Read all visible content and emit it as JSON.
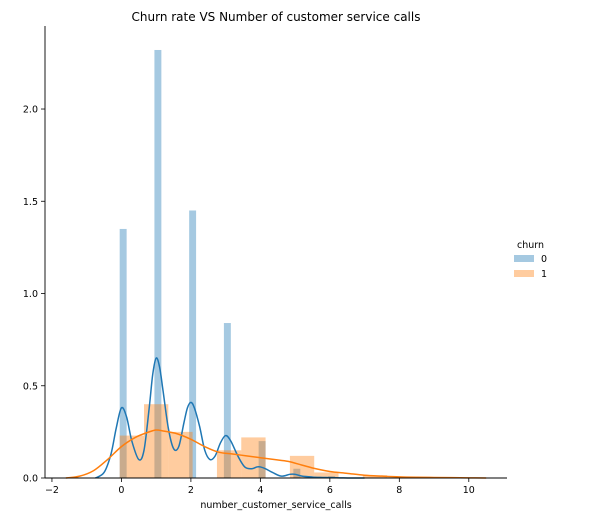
{
  "chart_data": {
    "type": "bar",
    "title": "Churn rate VS Number of customer service calls",
    "xlabel": "number_customer_service_calls",
    "ylabel": "",
    "xlim": [
      -2.2,
      11.1
    ],
    "ylim": [
      0,
      2.45
    ],
    "xticks": [
      -2,
      0,
      2,
      4,
      6,
      8,
      10
    ],
    "xtick_labels": [
      "−2",
      "0",
      "2",
      "4",
      "6",
      "8",
      "10"
    ],
    "yticks": [
      0,
      0.5,
      1.0,
      1.5,
      2.0
    ],
    "ytick_labels": [
      "0.0",
      "0.5",
      "1.0",
      "1.5",
      "2.0"
    ],
    "grid": false,
    "legend": {
      "title": "churn",
      "placement": "right"
    },
    "series": [
      {
        "name": "0",
        "color": "#1f77b4",
        "histogram": {
          "bin_edges": [
            -0.05,
            0.15,
            0.95,
            1.15,
            1.95,
            2.15,
            2.95,
            3.15,
            3.95,
            4.15,
            4.95,
            5.15,
            5.95,
            6.15
          ],
          "bars": [
            {
              "x0": -0.05,
              "x1": 0.15,
              "density": 1.35
            },
            {
              "x0": 0.95,
              "x1": 1.15,
              "density": 2.32
            },
            {
              "x0": 1.95,
              "x1": 2.15,
              "density": 1.45
            },
            {
              "x0": 2.95,
              "x1": 3.15,
              "density": 0.84
            },
            {
              "x0": 3.95,
              "x1": 4.15,
              "density": 0.2
            },
            {
              "x0": 4.95,
              "x1": 5.15,
              "density": 0.05
            },
            {
              "x0": 5.95,
              "x1": 6.15,
              "density": 0.01
            }
          ]
        },
        "kde": {
          "x": [
            -0.75,
            -0.5,
            -0.3,
            -0.15,
            0,
            0.15,
            0.3,
            0.5,
            0.65,
            0.8,
            0.9,
            1.0,
            1.1,
            1.2,
            1.35,
            1.5,
            1.65,
            1.8,
            1.9,
            2.0,
            2.1,
            2.25,
            2.4,
            2.55,
            2.7,
            2.85,
            3.0,
            3.15,
            3.35,
            3.55,
            3.75,
            3.9,
            4.0,
            4.15,
            4.35,
            4.6,
            4.85,
            5.0,
            5.2,
            5.5,
            5.8,
            6.0,
            6.3,
            6.6,
            7.0
          ],
          "y": [
            0.0,
            0.03,
            0.13,
            0.27,
            0.38,
            0.33,
            0.2,
            0.1,
            0.15,
            0.38,
            0.56,
            0.65,
            0.6,
            0.47,
            0.27,
            0.16,
            0.17,
            0.3,
            0.38,
            0.41,
            0.38,
            0.28,
            0.15,
            0.1,
            0.12,
            0.19,
            0.23,
            0.2,
            0.12,
            0.06,
            0.05,
            0.06,
            0.06,
            0.05,
            0.03,
            0.01,
            0.02,
            0.02,
            0.01,
            0.005,
            0.003,
            0.002,
            0.001,
            0.0,
            0.0
          ]
        }
      },
      {
        "name": "1",
        "color": "#ff7f0e",
        "histogram": {
          "bin_edges": [
            -0.05,
            0.65,
            1.35,
            2.05,
            2.75,
            3.45,
            4.15,
            4.85,
            5.55,
            6.25,
            6.95,
            7.65,
            8.35,
            9.05
          ],
          "bars": [
            {
              "x0": -0.05,
              "x1": 0.65,
              "density": 0.23
            },
            {
              "x0": 0.65,
              "x1": 1.35,
              "density": 0.4
            },
            {
              "x0": 1.35,
              "x1": 2.05,
              "density": 0.25
            },
            {
              "x0": 2.75,
              "x1": 3.45,
              "density": 0.15
            },
            {
              "x0": 3.45,
              "x1": 4.15,
              "density": 0.22
            },
            {
              "x0": 4.85,
              "x1": 5.55,
              "density": 0.12
            },
            {
              "x0": 5.55,
              "x1": 6.25,
              "density": 0.03
            },
            {
              "x0": 6.95,
              "x1": 7.65,
              "density": 0.015
            },
            {
              "x0": 8.35,
              "x1": 9.05,
              "density": 0.005
            }
          ]
        },
        "kde": {
          "x": [
            -1.6,
            -1.2,
            -0.8,
            -0.4,
            0,
            0.4,
            0.8,
            1.0,
            1.2,
            1.6,
            2.0,
            2.4,
            2.8,
            3.2,
            3.6,
            4.0,
            4.4,
            4.8,
            5.2,
            5.6,
            6.0,
            6.5,
            7.0,
            7.5,
            8.0,
            8.5,
            9.0,
            9.5,
            10.0,
            10.5
          ],
          "y": [
            0.0,
            0.01,
            0.04,
            0.1,
            0.17,
            0.22,
            0.25,
            0.26,
            0.255,
            0.24,
            0.21,
            0.17,
            0.14,
            0.13,
            0.12,
            0.11,
            0.1,
            0.09,
            0.07,
            0.05,
            0.035,
            0.025,
            0.015,
            0.01,
            0.006,
            0.004,
            0.003,
            0.002,
            0.001,
            0.0
          ]
        }
      }
    ]
  }
}
